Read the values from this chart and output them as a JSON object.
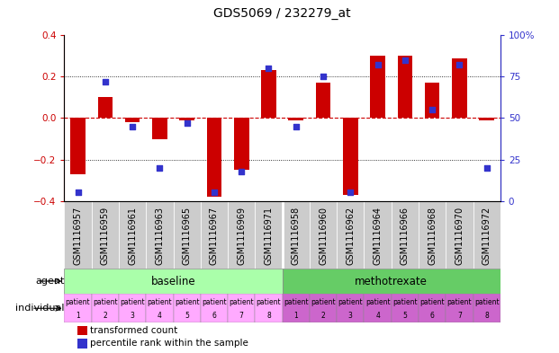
{
  "title": "GDS5069 / 232279_at",
  "samples": [
    "GSM1116957",
    "GSM1116959",
    "GSM1116961",
    "GSM1116963",
    "GSM1116965",
    "GSM1116967",
    "GSM1116969",
    "GSM1116971",
    "GSM1116958",
    "GSM1116960",
    "GSM1116962",
    "GSM1116964",
    "GSM1116966",
    "GSM1116968",
    "GSM1116970",
    "GSM1116972"
  ],
  "bar_values": [
    -0.27,
    0.1,
    -0.02,
    -0.1,
    -0.01,
    -0.38,
    -0.25,
    0.23,
    -0.01,
    0.17,
    -0.37,
    0.3,
    0.3,
    0.17,
    0.29,
    -0.01
  ],
  "dot_values": [
    5,
    72,
    45,
    20,
    47,
    5,
    18,
    80,
    45,
    75,
    5,
    82,
    85,
    55,
    82,
    20
  ],
  "ylim_left": [
    -0.4,
    0.4
  ],
  "ylim_right": [
    0,
    100
  ],
  "yticks_left": [
    -0.4,
    -0.2,
    0.0,
    0.2,
    0.4
  ],
  "yticks_right": [
    0,
    25,
    50,
    75,
    100
  ],
  "yticklabels_right": [
    "0",
    "25",
    "50",
    "75",
    "100%"
  ],
  "hlines_dotted": [
    -0.2,
    0.2
  ],
  "bar_color": "#CC0000",
  "dot_color": "#3333CC",
  "zero_line_color": "#CC0000",
  "agent_baseline_color": "#aaffaa",
  "agent_methotrexate_color": "#66cc66",
  "individual_baseline_color": "#ffaaff",
  "individual_methotrexate_color": "#cc66cc",
  "sample_box_color": "#cccccc",
  "agent_baseline_label": "baseline",
  "agent_methotrexate_label": "methotrexate",
  "n_baseline": 8,
  "n_methotrexate": 8,
  "legend_bar_label": "transformed count",
  "legend_dot_label": "percentile rank within the sample",
  "bar_width": 0.55,
  "background_color": "#ffffff",
  "title_fontsize": 10,
  "tick_label_fontsize": 7,
  "row_label_fontsize": 8,
  "patient_fontsize": 5.5,
  "legend_fontsize": 7.5
}
